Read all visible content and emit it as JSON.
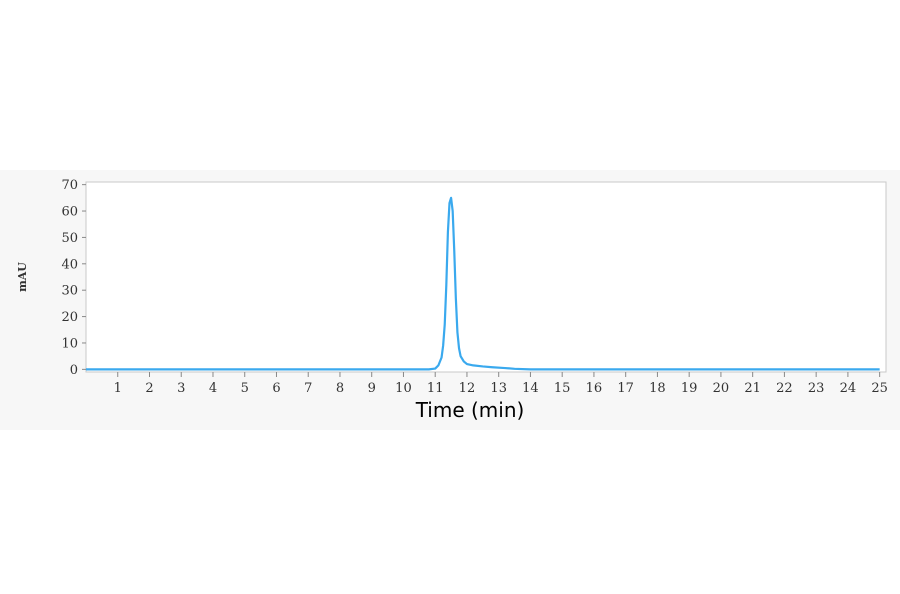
{
  "chart_data": {
    "type": "line",
    "title": "",
    "xlabel": "Time (min)",
    "ylabel": "mAU",
    "xlim": [
      0,
      25.2
    ],
    "ylim": [
      -1,
      71
    ],
    "xticks": [
      1,
      2,
      3,
      4,
      5,
      6,
      7,
      8,
      9,
      10,
      11,
      12,
      13,
      14,
      15,
      16,
      17,
      18,
      19,
      20,
      21,
      22,
      23,
      24,
      25
    ],
    "xtick_labels": [
      "1",
      "2",
      "3",
      "4",
      "5",
      "6",
      "7",
      "8",
      "9",
      "10",
      "11",
      "12",
      "13",
      "14",
      "15",
      "16",
      "17",
      "18",
      "19",
      "20",
      "21",
      "22",
      "23",
      "24",
      "25"
    ],
    "yticks": [
      0,
      10,
      20,
      30,
      40,
      50,
      60,
      70
    ],
    "ytick_labels": [
      "0",
      "10",
      "20",
      "30",
      "40",
      "50",
      "60",
      "70"
    ],
    "grid": false,
    "line_color": "#3aa9ee",
    "series": [
      {
        "x": [
          0,
          10.8,
          11.0,
          11.1,
          11.2,
          11.25,
          11.3,
          11.35,
          11.4,
          11.45,
          11.5,
          11.55,
          11.6,
          11.65,
          11.7,
          11.75,
          11.8,
          11.9,
          12.0,
          12.2,
          12.5,
          12.8,
          13.2,
          13.5,
          14.0,
          25.0
        ],
        "y": [
          0,
          0,
          0.3,
          1.5,
          4.5,
          9,
          17,
          32,
          52,
          63,
          65,
          60,
          45,
          27,
          14,
          8,
          5,
          3,
          2,
          1.5,
          1.1,
          0.8,
          0.5,
          0.2,
          0,
          0
        ]
      }
    ]
  }
}
